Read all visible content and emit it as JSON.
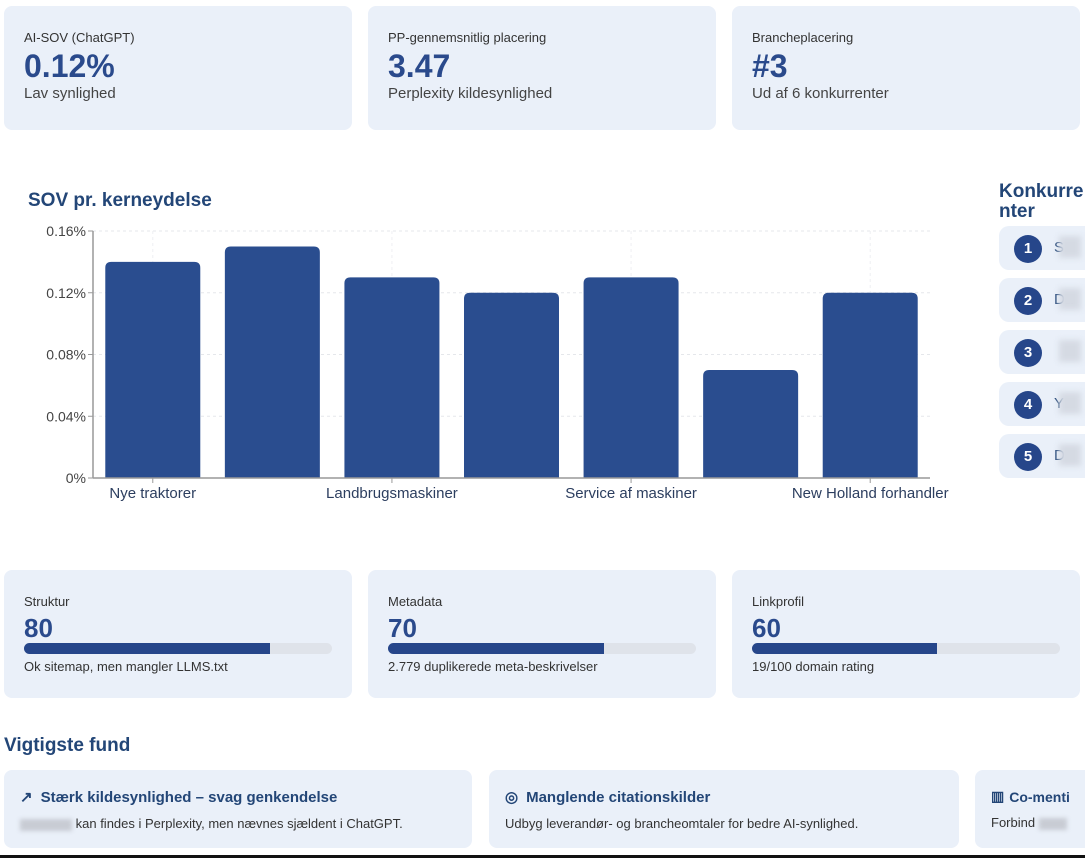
{
  "kpis": [
    {
      "label": "AI-SOV (ChatGPT)",
      "value": "0.12%",
      "sub": "Lav synlighed"
    },
    {
      "label": "PP-gennemsnitlig placering",
      "value": "3.47",
      "sub": "Perplexity kildesynlighed"
    },
    {
      "label": "Brancheplacering",
      "value": "#3",
      "sub": "Ud af 6 konkurrenter"
    }
  ],
  "chart_title": "SOV pr. kerneydelse",
  "chart_data": {
    "type": "bar",
    "categories": [
      "Nye traktorer",
      "",
      "Landbrugsmaskiner",
      "",
      "Service af maskiner",
      "",
      "New Holland forhandler"
    ],
    "values": [
      0.14,
      0.15,
      0.13,
      0.12,
      0.13,
      0.07,
      0.12
    ],
    "yticks": [
      "0%",
      "0.04%",
      "0.08%",
      "0.12%",
      "0.16%"
    ],
    "ylim": [
      0,
      0.16
    ],
    "grid": true,
    "color": "#2a4d8f"
  },
  "competitors": {
    "title": "Konkurrenter",
    "items": [
      {
        "rank": "1",
        "name": "S"
      },
      {
        "rank": "2",
        "name": "Da"
      },
      {
        "rank": "3",
        "name": ""
      },
      {
        "rank": "4",
        "name": "Y"
      },
      {
        "rank": "5",
        "name": "D"
      }
    ]
  },
  "scores": [
    {
      "label": "Struktur",
      "value": "80",
      "pct": 80,
      "sub": "Ok sitemap, men mangler LLMS.txt"
    },
    {
      "label": "Metadata",
      "value": "70",
      "pct": 70,
      "sub": "2.779 duplikerede meta-beskrivelser"
    },
    {
      "label": "Linkprofil",
      "value": "60",
      "pct": 60,
      "sub": "19/100 domain rating"
    }
  ],
  "findings_title": "Vigtigste fund",
  "findings": [
    {
      "icon": "trend-up-icon",
      "title": "Stærk kildesynlighed – svag genkendelse",
      "desc": "kan findes i Perplexity, men nævnes sjældent i ChatGPT."
    },
    {
      "icon": "target-icon",
      "title": "Manglende citationskilder",
      "desc": "Udbyg leverandør- og brancheomtaler for bedre AI-synlighed."
    },
    {
      "icon": "bar-chart-icon",
      "title": "Co-menti",
      "desc": "Forbind"
    }
  ]
}
